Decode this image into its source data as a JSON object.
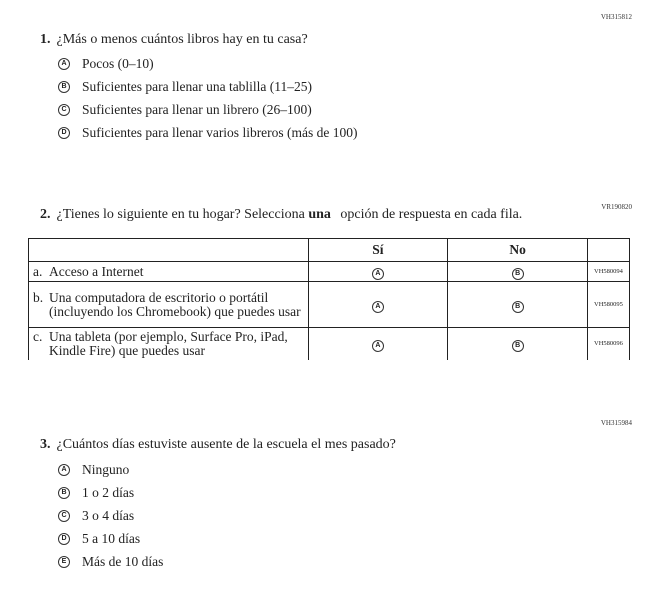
{
  "q1": {
    "code": "VH315812",
    "number": "1.",
    "text": "¿Más o menos cuántos libros hay en tu casa?",
    "options": [
      {
        "letter": "A",
        "text": "Pocos (0–10)"
      },
      {
        "letter": "B",
        "text": "Suficientes para llenar una tablilla (11–25)"
      },
      {
        "letter": "C",
        "text": "Suficientes para llenar un librero (26–100)"
      },
      {
        "letter": "D",
        "text": "Suficientes para llenar varios libreros (más de 100)"
      }
    ]
  },
  "q2": {
    "code": "VR190820",
    "number": "2.",
    "text_before": "¿Tienes lo siguiente en tu hogar? Selecciona ",
    "text_bold": "una",
    "text_after": " opción de respuesta en cada fila.",
    "columns": [
      "Sí",
      "No"
    ],
    "rows": [
      {
        "letter": "a.",
        "text": "Acceso a Internet",
        "yes": "A",
        "no": "B",
        "code": "VH580094"
      },
      {
        "letter": "b.",
        "text": "Una computadora de escritorio o portátil (incluyendo los Chromebook) que puedes usar",
        "yes": "A",
        "no": "B",
        "code": "VH580095"
      },
      {
        "letter": "c.",
        "text": "Una tableta (por ejemplo, Surface Pro, iPad, Kindle Fire) que puedes usar",
        "yes": "A",
        "no": "B",
        "code": "VH580096"
      }
    ]
  },
  "q3": {
    "code": "VH315984",
    "number": "3.",
    "text": "¿Cuántos días estuviste ausente de la escuela el mes pasado?",
    "options": [
      {
        "letter": "A",
        "text": "Ninguno"
      },
      {
        "letter": "B",
        "text": "1 o 2 días"
      },
      {
        "letter": "C",
        "text": "3 o 4 días"
      },
      {
        "letter": "D",
        "text": "5 a 10 días"
      },
      {
        "letter": "E",
        "text": "Más de 10 días"
      }
    ]
  }
}
